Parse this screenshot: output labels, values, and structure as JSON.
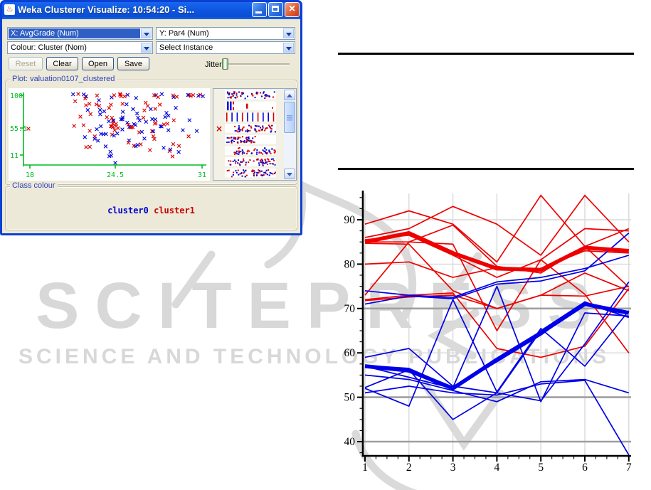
{
  "window": {
    "title": "Weka Clusterer Visualize: 10:54:20 - Si...",
    "titlebar_buttons": [
      "minimize",
      "maximize",
      "close"
    ],
    "controls": {
      "x_combo": "X: AvgGrade (Num)",
      "y_combo": "Y: Par4 (Num)",
      "colour_combo": "Colour: Cluster (Nom)",
      "instance_combo": "Select Instance",
      "buttons": [
        "Reset",
        "Clear",
        "Open",
        "Save"
      ],
      "reset_enabled": false,
      "jitter": {
        "label": "Jitter",
        "value": 0
      }
    },
    "plot_panel": {
      "title": "Plot: valuation0107_clustered",
      "attribute_strips": {
        "rows": 8,
        "types": [
          "speckle",
          "bars-left",
          "vlines",
          "speckle-right",
          "speckle-left",
          "speckle-right",
          "speckle",
          "speckle"
        ]
      },
      "selected_attribute_marker": "x"
    },
    "class_panel": {
      "title": "Class colour",
      "classes": [
        {
          "label": "cluster0",
          "color": "#0000cc"
        },
        {
          "label": "cluster1",
          "color": "#cc0000"
        }
      ]
    }
  },
  "watermark": {
    "line1": "SCITEPRESS",
    "line2": "SCIENCE AND TECHNOLOGY PUBLICATIONS",
    "color": "#d8d8d8"
  },
  "chart_data": [
    {
      "type": "line",
      "title": "",
      "xlabel": "",
      "ylabel": "",
      "x": [
        1,
        2,
        3,
        4,
        5,
        6,
        7
      ],
      "xticks": [
        1,
        2,
        3,
        4,
        5,
        6,
        7
      ],
      "yticks": [
        40,
        50,
        60,
        70,
        80,
        90
      ],
      "xlim": [
        0.95,
        7.08
      ],
      "ylim": [
        36.8,
        95.9
      ],
      "grid": "both",
      "dark_gridlines_y": [
        70,
        50,
        40
      ],
      "legend": "none",
      "colors": {
        "cluster1": "#ee0000",
        "cluster0": "#0000e8"
      },
      "series": [
        {
          "name": "cluster1-mean",
          "color": "#ee0000",
          "width": 5.5,
          "values": [
            85,
            87,
            82.5,
            79,
            78.7,
            83.7,
            83
          ]
        },
        {
          "name": "cluster1-1",
          "color": "#ee0000",
          "width": 1.7,
          "values": [
            89,
            92,
            89,
            80.5,
            95.5,
            84,
            88
          ]
        },
        {
          "name": "cluster1-2",
          "color": "#ee0000",
          "width": 1.7,
          "values": [
            86,
            88,
            93,
            89,
            82,
            95.5,
            85
          ]
        },
        {
          "name": "cluster1-3",
          "color": "#ee0000",
          "width": 1.7,
          "values": [
            85.5,
            86.5,
            82,
            77,
            81,
            88,
            87.5
          ]
        },
        {
          "name": "cluster1-4",
          "color": "#ee0000",
          "width": 1.7,
          "values": [
            85,
            85,
            88.8,
            79.5,
            78,
            84,
            74.8
          ]
        },
        {
          "name": "cluster1-5",
          "color": "#ee0000",
          "width": 1.7,
          "values": [
            84.7,
            84.5,
            74,
            70,
            73,
            78,
            74
          ]
        },
        {
          "name": "cluster1-6",
          "color": "#ee0000",
          "width": 1.7,
          "values": [
            80,
            80.5,
            77,
            79.2,
            79,
            83,
            82.5
          ]
        },
        {
          "name": "cluster1-7",
          "color": "#ee0000",
          "width": 1.7,
          "values": [
            73,
            85,
            84.5,
            65,
            81,
            73.2,
            60
          ]
        },
        {
          "name": "cluster1-8",
          "color": "#ee0000",
          "width": 1.7,
          "values": [
            72,
            73,
            73.5,
            61,
            59,
            61.5,
            74.5
          ]
        },
        {
          "name": "cluster1-9",
          "color": "#ee0000",
          "width": 1.7,
          "values": [
            71.8,
            72.6,
            73,
            70,
            73,
            72.8,
            75
          ]
        },
        {
          "name": "cluster0-mean",
          "color": "#0000e8",
          "width": 5.5,
          "values": [
            57,
            56,
            52,
            58.5,
            64.5,
            71,
            69
          ]
        },
        {
          "name": "cluster0-1",
          "color": "#0000e8",
          "width": 1.7,
          "values": [
            74,
            73,
            72.5,
            76,
            77,
            79,
            82
          ]
        },
        {
          "name": "cluster0-2",
          "color": "#0000e8",
          "width": 1.7,
          "values": [
            71,
            72.8,
            72.2,
            75.5,
            76.2,
            78.5,
            87
          ]
        },
        {
          "name": "cluster0-3",
          "color": "#0000e8",
          "width": 1.7,
          "values": [
            59,
            61,
            52.5,
            51,
            65,
            71.5,
            68
          ]
        },
        {
          "name": "cluster0-4",
          "color": "#0000e8",
          "width": 1.7,
          "values": [
            57.2,
            56.5,
            52.2,
            75,
            49,
            69,
            68.3
          ]
        },
        {
          "name": "cluster0-5",
          "color": "#0000e8",
          "width": 1.7,
          "values": [
            55,
            54,
            51.5,
            49,
            53.5,
            54,
            51
          ]
        },
        {
          "name": "cluster0-6",
          "color": "#0000e8",
          "width": 1.7,
          "values": [
            52,
            48,
            72,
            51.2,
            65.5,
            57,
            69.5
          ]
        },
        {
          "name": "cluster0-7",
          "color": "#0000e8",
          "width": 1.7,
          "values": [
            51,
            52.5,
            51,
            50.5,
            53,
            53.8,
            37
          ]
        },
        {
          "name": "cluster0-8",
          "color": "#0000e8",
          "width": 1.7,
          "values": [
            57,
            54.5,
            52,
            58,
            64,
            71.2,
            68
          ]
        },
        {
          "name": "cluster0-9",
          "color": "#0000e8",
          "width": 1.7,
          "values": [
            52.2,
            56.2,
            45,
            51,
            49.2,
            62,
            76
          ]
        }
      ]
    },
    {
      "type": "scatter",
      "title": "Plot: valuation0107_clustered",
      "xticks": [
        "18",
        "24.5",
        "31"
      ],
      "yticks": [
        "11",
        "55.5",
        "100"
      ],
      "xlim": [
        18,
        31
      ],
      "ylim": [
        11,
        100
      ],
      "axis_color": "#00bb22",
      "marker": "x",
      "approx_point_count": 150,
      "clusters": [
        {
          "name": "cluster0",
          "color": "#0000dd"
        },
        {
          "name": "cluster1",
          "color": "#dd0000"
        }
      ]
    }
  ]
}
